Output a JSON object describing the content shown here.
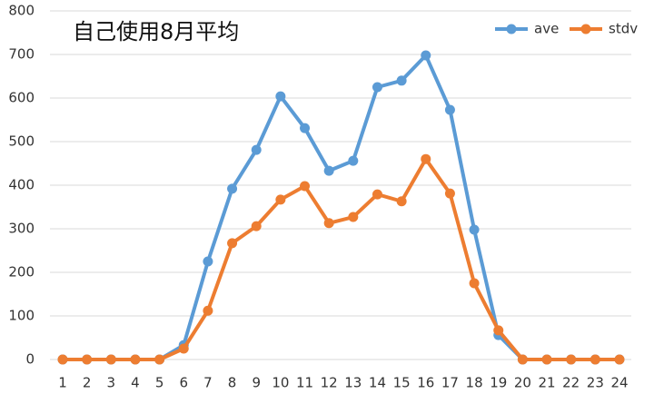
{
  "chart_data": {
    "type": "line",
    "title": "自己使用8月平均",
    "categories": [
      "1",
      "2",
      "3",
      "4",
      "5",
      "6",
      "7",
      "8",
      "9",
      "10",
      "11",
      "12",
      "13",
      "14",
      "15",
      "16",
      "17",
      "18",
      "19",
      "20",
      "21",
      "22",
      "23",
      "24"
    ],
    "series": [
      {
        "name": "ave",
        "color": "#5b9bd5",
        "values": [
          0,
          0,
          0,
          0,
          0,
          33,
          225,
          392,
          481,
          604,
          531,
          433,
          456,
          625,
          640,
          698,
          573,
          298,
          56,
          0,
          0,
          0,
          0,
          0
        ]
      },
      {
        "name": "stdv",
        "color": "#ed7d31",
        "values": [
          0,
          0,
          0,
          0,
          0,
          25,
          112,
          267,
          306,
          367,
          398,
          313,
          327,
          379,
          363,
          460,
          381,
          175,
          67,
          0,
          0,
          0,
          0,
          0
        ]
      }
    ],
    "ylim": [
      0,
      800
    ],
    "yticks": [
      0,
      100,
      200,
      300,
      400,
      500,
      600,
      700,
      800
    ],
    "grid": true,
    "legend": "top-right"
  }
}
